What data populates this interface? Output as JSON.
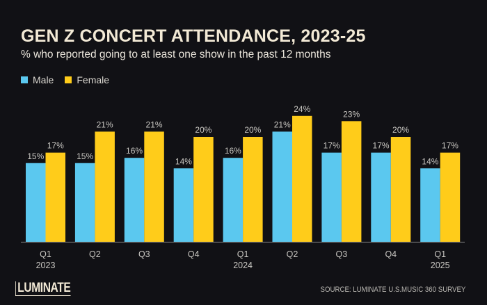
{
  "chart_data": {
    "type": "bar",
    "title": "GEN Z CONCERT ATTENDANCE, 2023-25",
    "subtitle": "% who reported going to at least one show in the past 12 months",
    "categories": [
      {
        "quarter": "Q1",
        "year": "2023"
      },
      {
        "quarter": "Q2",
        "year": ""
      },
      {
        "quarter": "Q3",
        "year": ""
      },
      {
        "quarter": "Q4",
        "year": ""
      },
      {
        "quarter": "Q1",
        "year": "2024"
      },
      {
        "quarter": "Q2",
        "year": ""
      },
      {
        "quarter": "Q3",
        "year": ""
      },
      {
        "quarter": "Q4",
        "year": ""
      },
      {
        "quarter": "Q1",
        "year": "2025"
      }
    ],
    "series": [
      {
        "name": "Male",
        "color": "#5bc8ef",
        "values": [
          15,
          15,
          16,
          14,
          16,
          21,
          17,
          17,
          14
        ]
      },
      {
        "name": "Female",
        "color": "#ffcc1a",
        "values": [
          17,
          21,
          21,
          20,
          20,
          24,
          23,
          20,
          17
        ]
      }
    ],
    "value_suffix": "%",
    "xlabel": "",
    "ylabel": "",
    "ylim": [
      0,
      26
    ],
    "grid": false,
    "legend_position": "top-left",
    "source": "SOURCE: LUMINATE U.S.MUSIC 360 SURVEY"
  },
  "branding": {
    "logo_text": "LUMINATE"
  },
  "colors": {
    "background": "#111115",
    "title": "#f3ead6",
    "label": "#c9c7c2",
    "axis": "#8a8a8a"
  }
}
